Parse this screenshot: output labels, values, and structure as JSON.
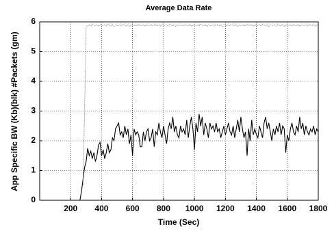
{
  "chart_data": {
    "type": "line",
    "title": "Average Data Rate",
    "xlabel": "Time (Sec)",
    "ylabel": "App Specific BW (Kb)(blk)  #Packets (gm)",
    "xlim": [
      0,
      1800
    ],
    "xticks": [
      200,
      400,
      600,
      800,
      1000,
      1200,
      1400,
      1600,
      1800
    ],
    "ylim": [
      0,
      6
    ],
    "yticks": [
      0,
      1,
      2,
      3,
      4,
      5,
      6
    ],
    "grid": true,
    "x": [
      260,
      270,
      280,
      290,
      300,
      310,
      320,
      330,
      340,
      350,
      360,
      370,
      380,
      390,
      400,
      410,
      420,
      430,
      440,
      450,
      460,
      470,
      480,
      490,
      500,
      510,
      520,
      530,
      540,
      550,
      560,
      570,
      580,
      590,
      600,
      610,
      620,
      630,
      640,
      650,
      660,
      670,
      680,
      690,
      700,
      710,
      720,
      730,
      740,
      750,
      760,
      770,
      780,
      790,
      800,
      810,
      820,
      830,
      840,
      850,
      860,
      870,
      880,
      890,
      900,
      910,
      920,
      930,
      940,
      950,
      960,
      970,
      980,
      990,
      1000,
      1010,
      1020,
      1030,
      1040,
      1050,
      1060,
      1070,
      1080,
      1090,
      1100,
      1110,
      1120,
      1130,
      1140,
      1150,
      1160,
      1170,
      1180,
      1190,
      1200,
      1210,
      1220,
      1230,
      1240,
      1250,
      1260,
      1270,
      1280,
      1290,
      1300,
      1310,
      1320,
      1330,
      1340,
      1350,
      1360,
      1370,
      1380,
      1390,
      1400,
      1410,
      1420,
      1430,
      1440,
      1450,
      1460,
      1470,
      1480,
      1490,
      1500,
      1510,
      1520,
      1530,
      1540,
      1550,
      1560,
      1570,
      1580,
      1590,
      1600,
      1610,
      1620,
      1630,
      1640,
      1650,
      1660,
      1670,
      1680,
      1690,
      1700,
      1710,
      1720,
      1730,
      1740,
      1750,
      1760,
      1770,
      1780,
      1790,
      1800
    ],
    "series": [
      {
        "name": "blk",
        "color": "#000000",
        "values": [
          0,
          0.3,
          0.7,
          1.1,
          1.3,
          1.75,
          1.5,
          1.65,
          1.4,
          1.6,
          1.3,
          1.5,
          1.85,
          1.95,
          1.5,
          1.7,
          1.4,
          1.6,
          1.9,
          1.6,
          1.7,
          2.1,
          2.0,
          2.4,
          2.5,
          2.6,
          2.2,
          2.3,
          2.1,
          2.5,
          2.2,
          2.4,
          1.9,
          2.2,
          1.5,
          2.4,
          2.2,
          2.3,
          2.2,
          1.8,
          1.8,
          2.3,
          2.0,
          2.3,
          2.4,
          2.0,
          2.1,
          2.4,
          1.8,
          2.3,
          2.2,
          2.6,
          2.3,
          2.1,
          2.5,
          2.2,
          1.9,
          2.4,
          2.6,
          2.4,
          2.8,
          2.3,
          2.5,
          2.2,
          2.1,
          2.5,
          2.3,
          2.4,
          2.2,
          2.7,
          2.1,
          2.5,
          2.8,
          2.4,
          1.7,
          2.6,
          2.3,
          2.9,
          2.5,
          2.8,
          2.2,
          2.6,
          2.4,
          2.1,
          2.6,
          2.4,
          2.5,
          2.3,
          2.6,
          2.3,
          2.4,
          2.1,
          2.3,
          2.5,
          2.2,
          2.4,
          2.6,
          2.3,
          2.2,
          2.5,
          2.1,
          2.4,
          2.7,
          2.3,
          2.8,
          2.4,
          2.1,
          2.3,
          1.5,
          2.4,
          2.0,
          2.7,
          2.2,
          2.4,
          2.2,
          2.1,
          2.5,
          2.3,
          2.1,
          2.6,
          2.8,
          2.4,
          2.6,
          2.3,
          2.0,
          2.4,
          2.2,
          2.5,
          2.3,
          2.6,
          2.2,
          2.5,
          2.4,
          1.6,
          2.2,
          2.0,
          2.4,
          2.6,
          2.3,
          2.2,
          2.5,
          2.3,
          2.8,
          2.4,
          2.6,
          2.2,
          2.5,
          2.3,
          2.2,
          2.4,
          2.3,
          2.5,
          2.2,
          2.4,
          2.3
        ]
      },
      {
        "name": "gm",
        "color": "#888888",
        "dashed": true,
        "values": [
          null,
          null,
          0.5,
          3.0,
          5.8,
          5.88,
          5.9,
          5.86,
          5.92,
          5.89,
          5.87,
          5.91,
          5.85,
          5.9,
          5.88,
          5.88,
          5.9,
          5.86,
          5.92,
          5.89,
          5.87,
          5.91,
          5.85,
          5.9,
          5.88,
          5.88,
          5.9,
          5.86,
          5.92,
          5.89,
          5.87,
          5.91,
          5.85,
          5.9,
          5.88,
          5.88,
          5.9,
          5.86,
          5.92,
          5.89,
          5.87,
          5.91,
          5.85,
          5.9,
          5.88,
          5.88,
          5.9,
          5.86,
          5.92,
          5.89,
          5.87,
          5.91,
          5.85,
          5.9,
          5.88,
          5.88,
          5.9,
          5.86,
          5.92,
          5.89,
          5.87,
          5.91,
          5.85,
          5.9,
          5.88,
          5.88,
          5.9,
          5.86,
          5.92,
          5.89,
          5.87,
          5.91,
          5.85,
          5.9,
          5.88,
          5.88,
          5.9,
          5.86,
          5.92,
          5.89,
          5.87,
          5.91,
          5.85,
          5.9,
          5.88,
          5.88,
          5.9,
          5.86,
          5.92,
          5.89,
          5.87,
          5.91,
          5.85,
          5.9,
          5.88,
          5.88,
          5.9,
          5.86,
          5.92,
          5.89,
          5.87,
          5.91,
          5.85,
          5.9,
          5.88,
          5.88,
          5.9,
          5.86,
          5.92,
          5.89,
          5.87,
          5.91,
          5.85,
          5.9,
          5.88,
          5.88,
          5.9,
          5.86,
          5.92,
          5.89,
          5.87,
          5.91,
          5.85,
          5.9,
          5.88,
          5.88,
          5.9,
          5.86,
          5.92,
          5.89,
          5.87,
          5.91,
          5.85,
          5.9,
          5.88,
          5.88,
          5.9,
          5.86,
          5.92,
          5.89,
          5.87,
          5.91,
          5.85,
          5.9,
          5.88,
          5.88,
          5.9,
          5.86,
          5.92,
          5.89,
          5.87,
          5.91,
          5.85,
          5.9,
          5.88
        ]
      }
    ]
  }
}
